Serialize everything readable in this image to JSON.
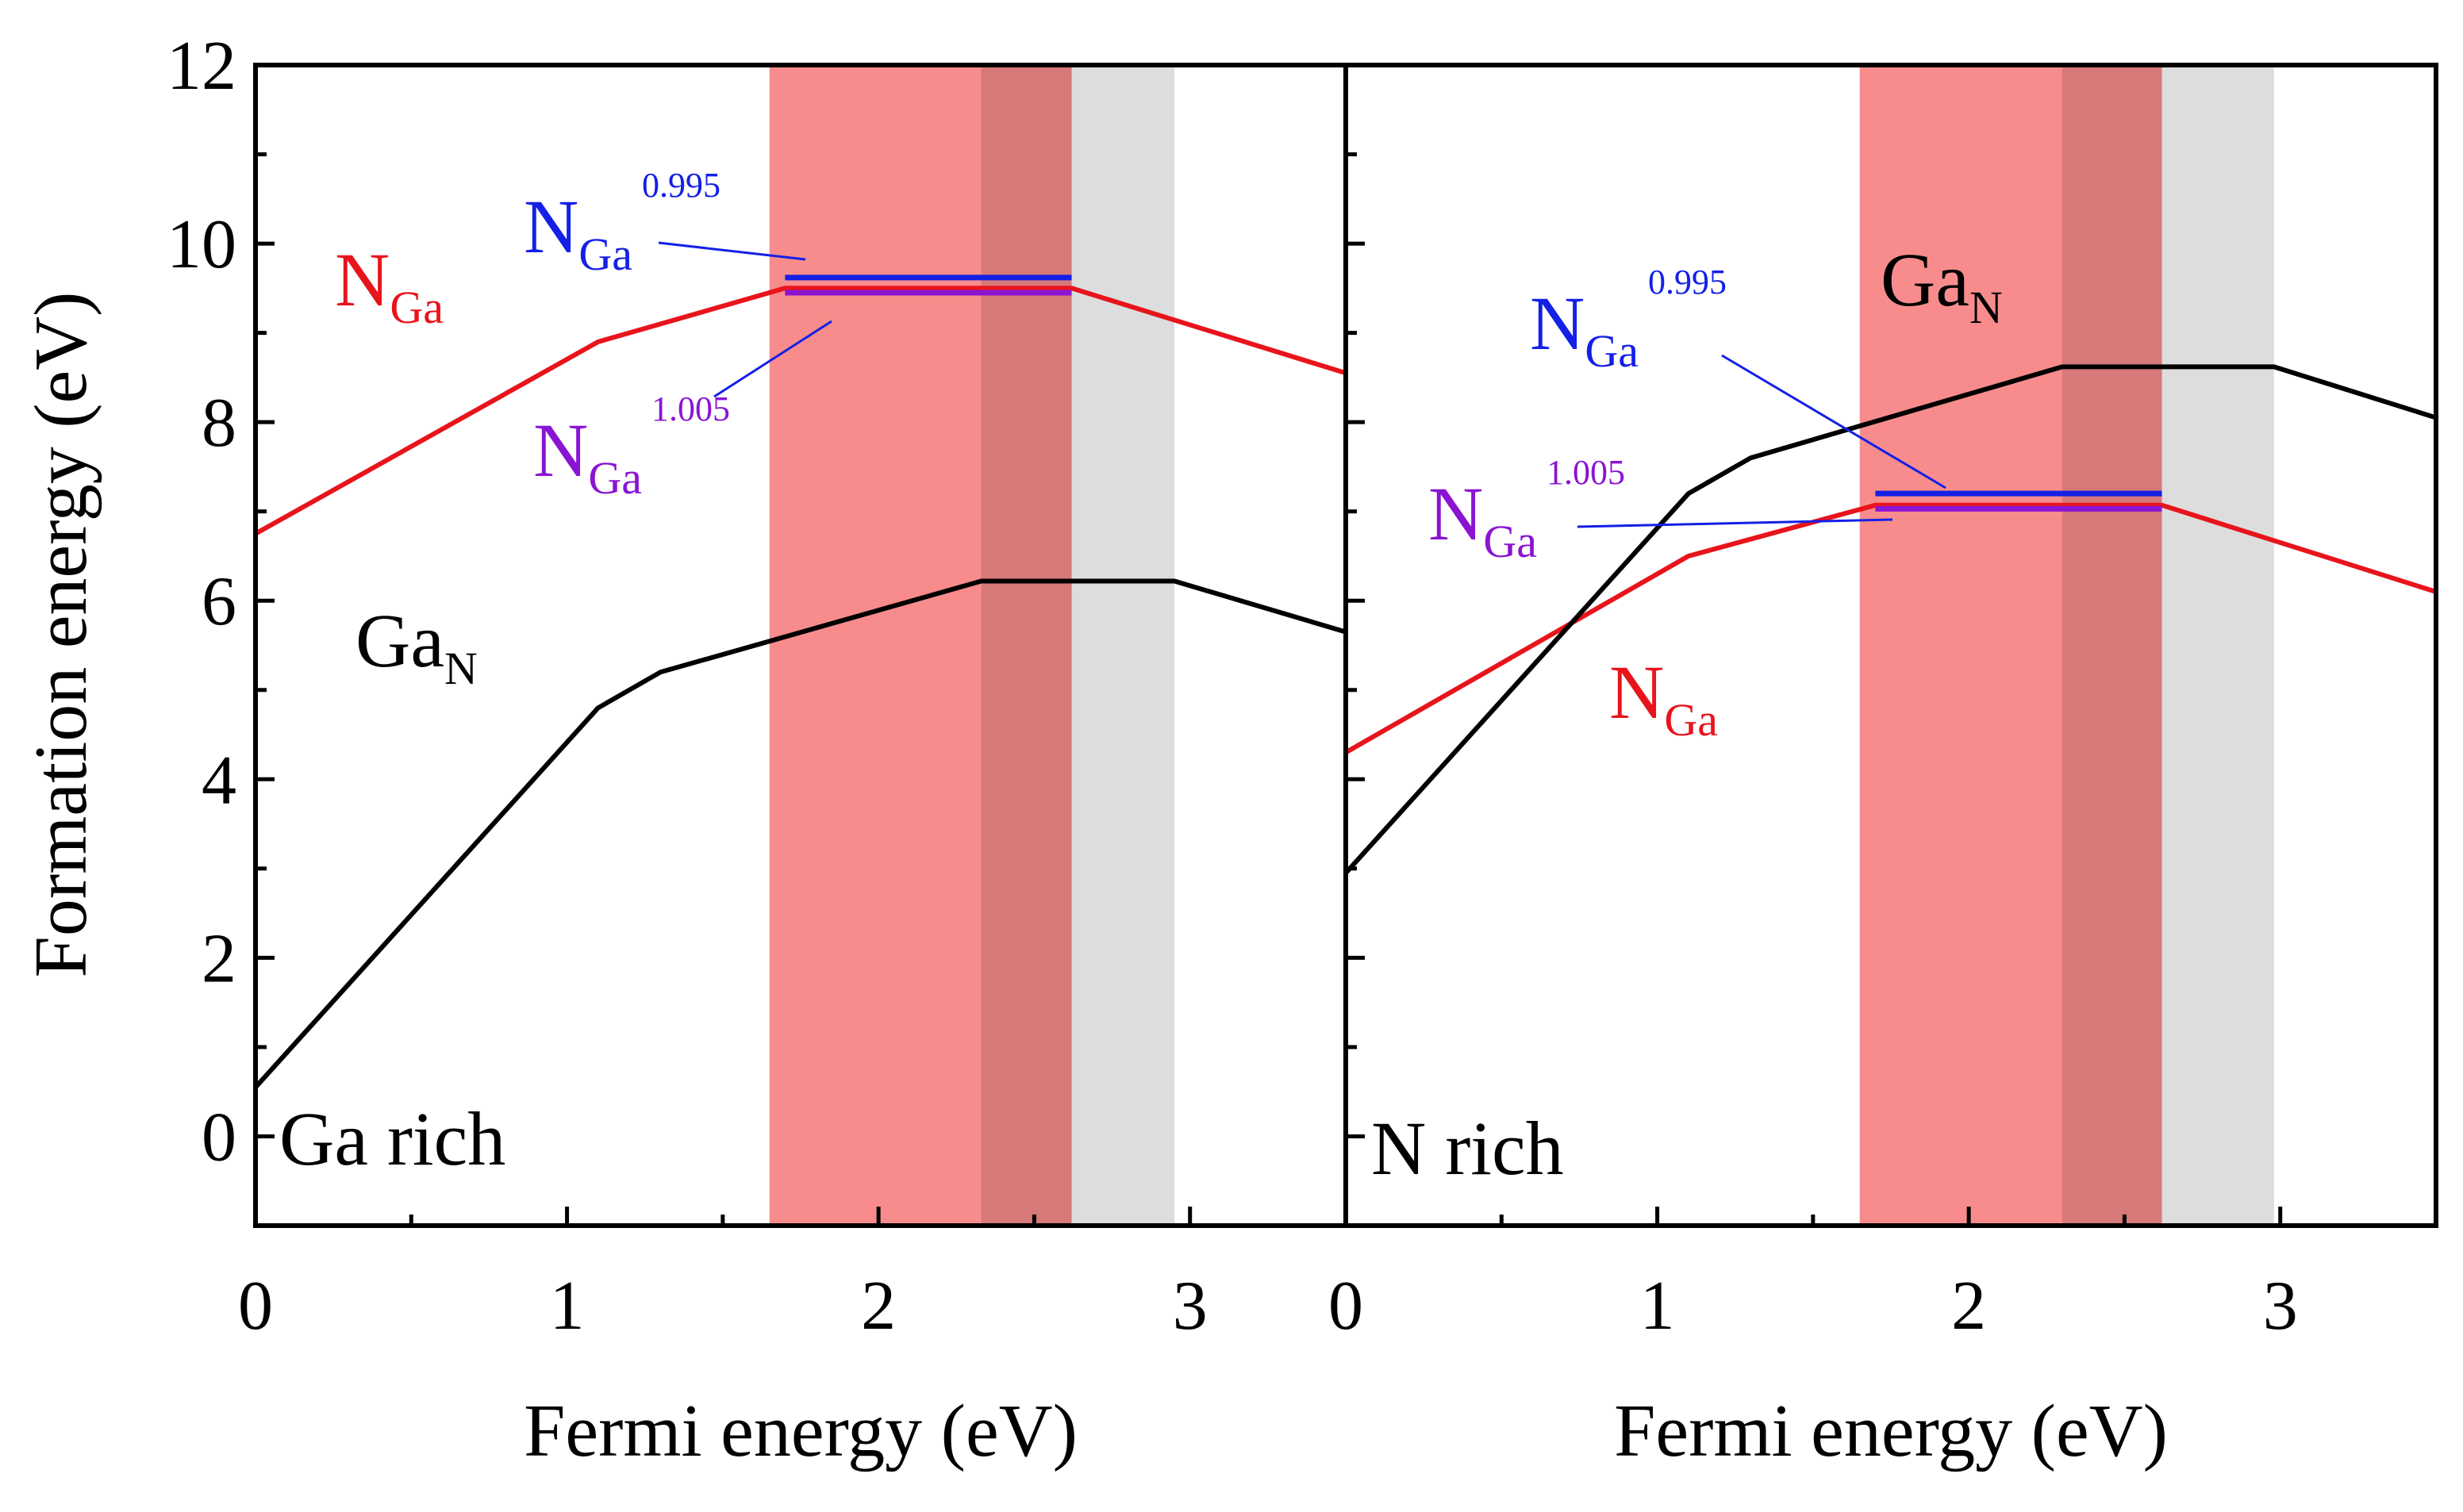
{
  "chart_data": {
    "type": "line",
    "ylabel": "Formation energy (eV)",
    "ylim": [
      -1,
      12
    ],
    "yticks": [
      "0",
      "2",
      "4",
      "6",
      "8",
      "10",
      "12"
    ],
    "colors": {
      "ngA": "#e8141c",
      "ga": "#000000",
      "blue": "#1420e6",
      "purple": "#8a14d2",
      "red_band": "#f88c8c",
      "gray_band": "#d4d4d4"
    },
    "panels": [
      {
        "name": "Ga rich",
        "condition_label": "Ga rich",
        "xlabel": "Fermi energy (eV)",
        "xlim": [
          0,
          3.5
        ],
        "xticks": [
          "0",
          "1",
          "2",
          "3"
        ],
        "series": [
          {
            "name": "N_Ga",
            "color": "#e8141c",
            "points": [
              [
                0,
                6.75
              ],
              [
                1.1,
                8.9
              ],
              [
                1.7,
                9.5
              ],
              [
                2.62,
                9.5
              ],
              [
                3.5,
                8.55
              ]
            ]
          },
          {
            "name": "Ga_N",
            "color": "#000000",
            "points": [
              [
                0,
                0.55
              ],
              [
                1.1,
                4.8
              ],
              [
                1.3,
                5.2
              ],
              [
                2.33,
                6.22
              ],
              [
                2.95,
                6.22
              ],
              [
                3.5,
                5.65
              ]
            ]
          }
        ],
        "levels": [
          {
            "name": "N_Ga^0.995",
            "color": "#1420e6",
            "y": 9.62,
            "x": [
              1.7,
              2.62
            ]
          },
          {
            "name": "N_Ga^1.005",
            "color": "#8a14d2",
            "y": 9.45,
            "x": [
              1.7,
              2.62
            ]
          }
        ],
        "bands": [
          {
            "name": "N_Ga stable window",
            "color": "#f88c8c",
            "x": [
              1.65,
              2.62
            ]
          },
          {
            "name": "Ga_N stable window",
            "color": "#d4d4d4",
            "x": [
              2.33,
              2.95
            ]
          }
        ],
        "labels": {
          "ngA_main": "N",
          "ngA_sub": "Ga",
          "blue_main": "N",
          "blue_sub": "Ga",
          "blue_sup": "0.995",
          "purple_main": "N",
          "purple_sub": "Ga",
          "purple_sup": "1.005",
          "ga_main": "Ga",
          "ga_sub": "N"
        }
      },
      {
        "name": "N rich",
        "condition_label": "N rich",
        "xlabel": "Fermi energy (eV)",
        "xlim": [
          0,
          3.5
        ],
        "xticks": [
          "0",
          "1",
          "2",
          "3"
        ],
        "series": [
          {
            "name": "N_Ga",
            "color": "#e8141c",
            "points": [
              [
                0,
                4.3
              ],
              [
                1.1,
                6.5
              ],
              [
                1.7,
                7.07
              ],
              [
                2.62,
                7.07
              ],
              [
                3.5,
                6.1
              ]
            ]
          },
          {
            "name": "Ga_N",
            "color": "#000000",
            "points": [
              [
                0,
                2.95
              ],
              [
                1.1,
                7.2
              ],
              [
                1.3,
                7.6
              ],
              [
                2.3,
                8.62
              ],
              [
                2.98,
                8.62
              ],
              [
                3.5,
                8.05
              ]
            ]
          }
        ],
        "levels": [
          {
            "name": "N_Ga^0.995",
            "color": "#1420e6",
            "y": 7.2,
            "x": [
              1.7,
              2.62
            ]
          },
          {
            "name": "N_Ga^1.005",
            "color": "#8a14d2",
            "y": 7.03,
            "x": [
              1.7,
              2.62
            ]
          }
        ],
        "bands": [
          {
            "name": "N_Ga stable window",
            "color": "#f88c8c",
            "x": [
              1.65,
              2.62
            ]
          },
          {
            "name": "Ga_N stable window",
            "color": "#d4d4d4",
            "x": [
              2.3,
              2.98
            ]
          }
        ],
        "labels": {
          "ngA_main": "N",
          "ngA_sub": "Ga",
          "blue_main": "N",
          "blue_sub": "Ga",
          "blue_sup": "0.995",
          "purple_main": "N",
          "purple_sub": "Ga",
          "purple_sup": "1.005",
          "ga_main": "Ga",
          "ga_sub": "N"
        }
      }
    ]
  }
}
